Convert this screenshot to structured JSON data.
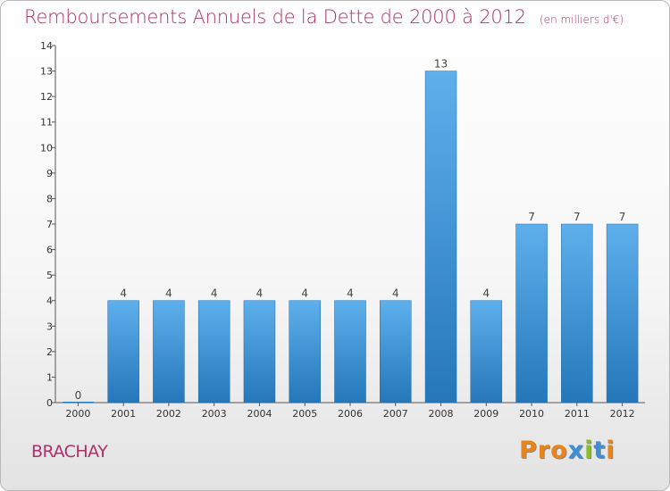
{
  "header": {
    "title": "Remboursements Annuels de la Dette de 2000 à 2012",
    "unit": "(en milliers d'€)"
  },
  "footer": {
    "commune": "BRACHAY",
    "brand": "Proxiti"
  },
  "colors": {
    "title": "#b0306a",
    "bar_light": "#5eb0ec",
    "bar_dark": "#2477b9",
    "brand_letters": [
      "#e8841a",
      "#e8841a",
      "#e8841a",
      "#3a8fd6",
      "#8bbd2a",
      "#3a8fd6",
      "#e8841a"
    ]
  },
  "chart_data": {
    "type": "bar",
    "title": "Remboursements Annuels de la Dette de 2000 à 2012",
    "xlabel": "",
    "ylabel": "",
    "categories": [
      "2000",
      "2001",
      "2002",
      "2003",
      "2004",
      "2005",
      "2006",
      "2007",
      "2008",
      "2009",
      "2010",
      "2011",
      "2012"
    ],
    "values": [
      0,
      4,
      4,
      4,
      4,
      4,
      4,
      4,
      13,
      4,
      7,
      7,
      7
    ],
    "data_labels": [
      "0",
      "4",
      "4",
      "4",
      "4",
      "4",
      "4",
      "4",
      "13",
      "4",
      "7",
      "7",
      "7"
    ],
    "ylim": [
      0,
      14
    ],
    "yticks": [
      "0",
      "1",
      "2",
      "3",
      "4",
      "5",
      "6",
      "7",
      "8",
      "9",
      "10",
      "11",
      "12",
      "13",
      "14"
    ],
    "grid": false,
    "legend": "none"
  }
}
